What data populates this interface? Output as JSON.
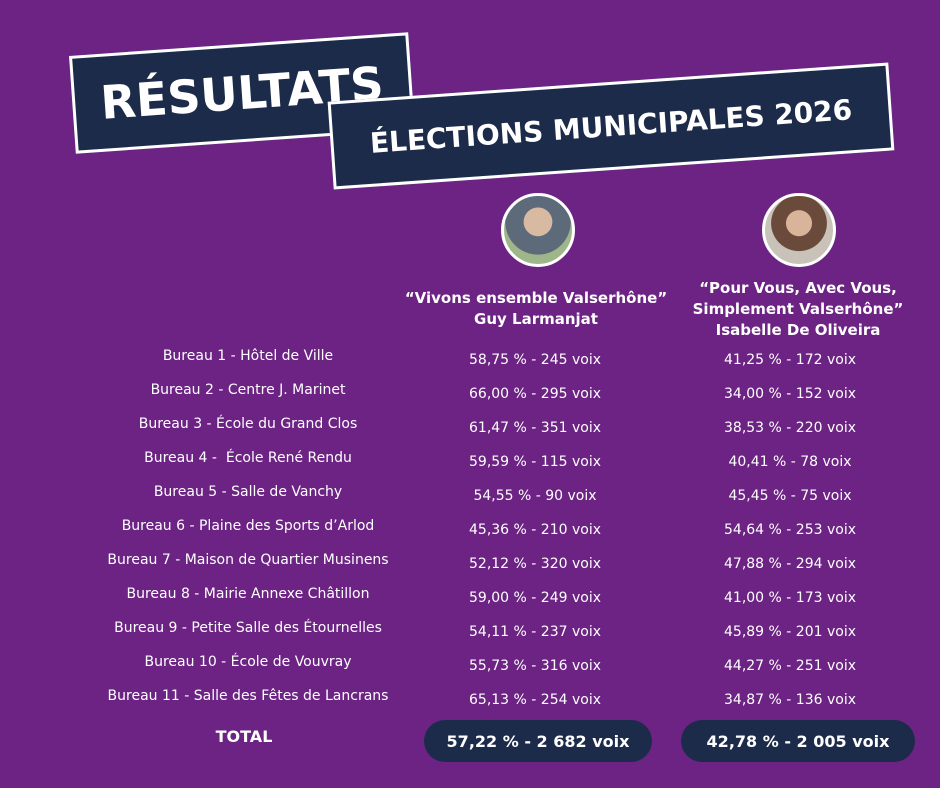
{
  "header": {
    "title": "RÉSULTATS",
    "subtitle": "ÉLECTIONS MUNICIPALES 2026"
  },
  "candidates": [
    {
      "list_lines": [
        "“Vivons ensemble Valserhône”"
      ],
      "name": "Guy Larmanjat"
    },
    {
      "list_lines": [
        "“Pour Vous, Avec Vous,",
        "Simplement Valserhône”"
      ],
      "name": "Isabelle De Oliveira"
    }
  ],
  "table": {
    "rows": [
      [
        "Bureau 1 - Hôtel de Ville",
        "58,75 % - 245 voix",
        "41,25 % - 172 voix"
      ],
      [
        "Bureau 2 - Centre J. Marinet",
        "66,00 % - 295 voix",
        "34,00 % - 152 voix"
      ],
      [
        "Bureau 3 - École du Grand Clos",
        "61,47 % - 351 voix",
        "38,53 % - 220 voix"
      ],
      [
        "Bureau 4 -  École René Rendu",
        "59,59 % - 115 voix",
        "40,41 % - 78 voix"
      ],
      [
        "Bureau 5 - Salle de Vanchy",
        "54,55 % - 90 voix",
        "45,45 % - 75 voix"
      ],
      [
        "Bureau 6 - Plaine des Sports d’Arlod",
        "45,36 % - 210 voix",
        "54,64 % - 253 voix"
      ],
      [
        "Bureau 7 - Maison de Quartier Musinens",
        "52,12 % - 320 voix",
        "47,88 % - 294 voix"
      ],
      [
        "Bureau 8 - Mairie Annexe Châtillon",
        "59,00 % - 249 voix",
        "41,00 % - 173 voix"
      ],
      [
        "Bureau 9 - Petite Salle des Étournelles",
        "54,11 % - 237 voix",
        "45,89 % - 201 voix"
      ],
      [
        "Bureau 10 - École de Vouvray",
        "55,73 % - 316 voix",
        "44,27 % - 251 voix"
      ],
      [
        "Bureau 11 - Salle des Fêtes de Lancrans",
        "65,13 % - 254 voix",
        "34,87 % - 136 voix"
      ]
    ]
  },
  "total": {
    "label": "TOTAL",
    "values": [
      "57,22 % - 2 682 voix",
      "42,78 % - 2 005 voix"
    ]
  }
}
